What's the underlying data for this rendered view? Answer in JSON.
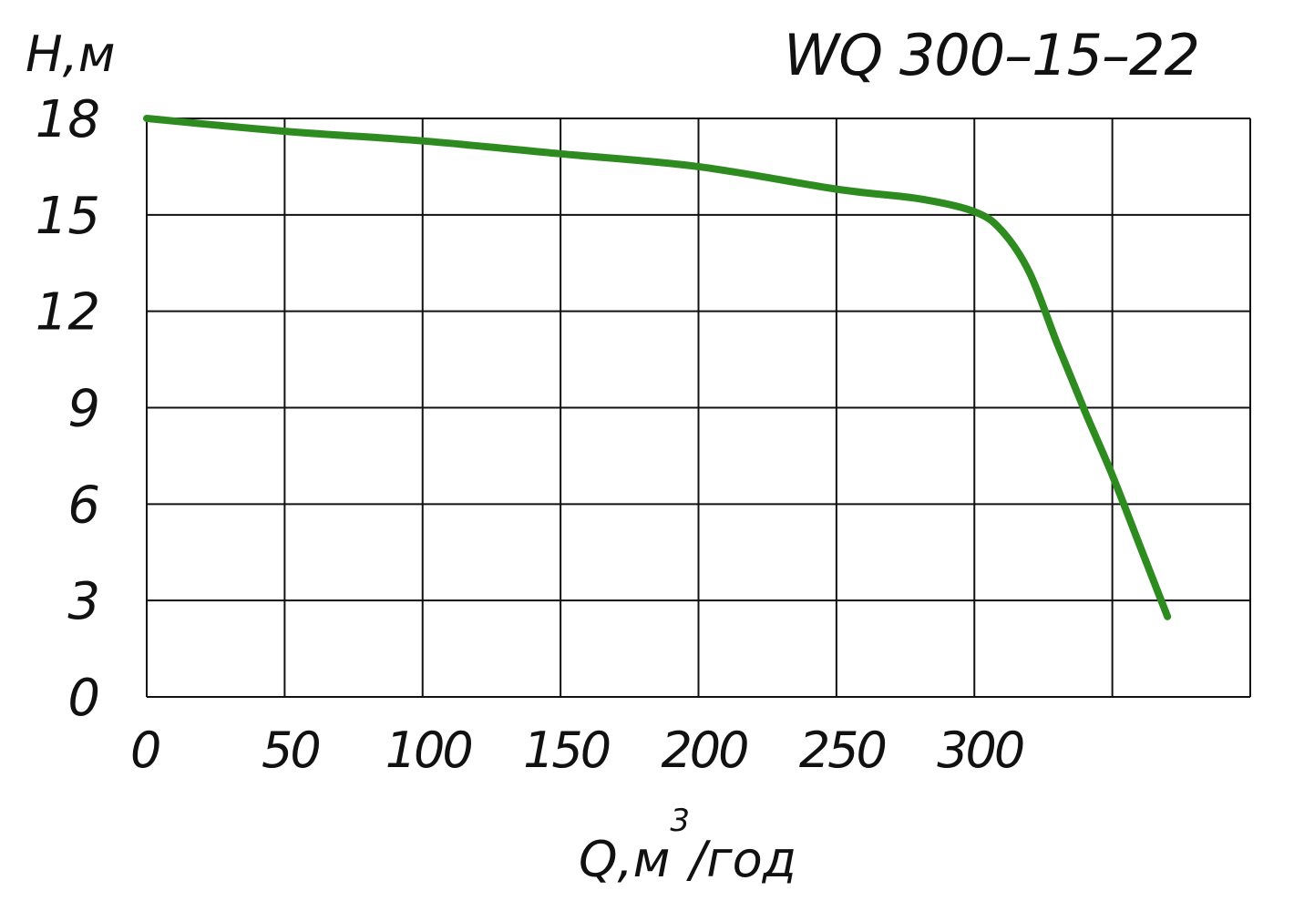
{
  "chart_data": {
    "type": "line",
    "title": "WQ 300–15–22",
    "ylabel": "Н,м",
    "xlabel": "Q,м",
    "xlabel_superscript": "3",
    "xlabel_suffix": "/год",
    "xlim": [
      0,
      400
    ],
    "ylim": [
      0,
      18
    ],
    "x_ticks": [
      0,
      50,
      100,
      150,
      200,
      250,
      300
    ],
    "x_tick_labels": [
      "0",
      "50",
      "100",
      "150",
      "200",
      "250",
      "300"
    ],
    "x_grid": [
      0,
      50,
      100,
      150,
      200,
      250,
      300,
      350,
      400
    ],
    "y_ticks": [
      0,
      3,
      6,
      9,
      12,
      15,
      18
    ],
    "y_tick_labels": [
      "0",
      "3",
      "6",
      "9",
      "12",
      "15",
      "18"
    ],
    "grid": true,
    "series": [
      {
        "color": "#2e8b1f",
        "x": [
          0,
          50,
          100,
          150,
          200,
          250,
          280,
          300,
          310,
          320,
          330,
          340,
          350,
          360,
          370
        ],
        "y": [
          18.0,
          17.6,
          17.3,
          16.9,
          16.5,
          15.8,
          15.5,
          15.1,
          14.5,
          13.2,
          11.0,
          8.9,
          6.9,
          4.7,
          2.5
        ]
      }
    ]
  }
}
